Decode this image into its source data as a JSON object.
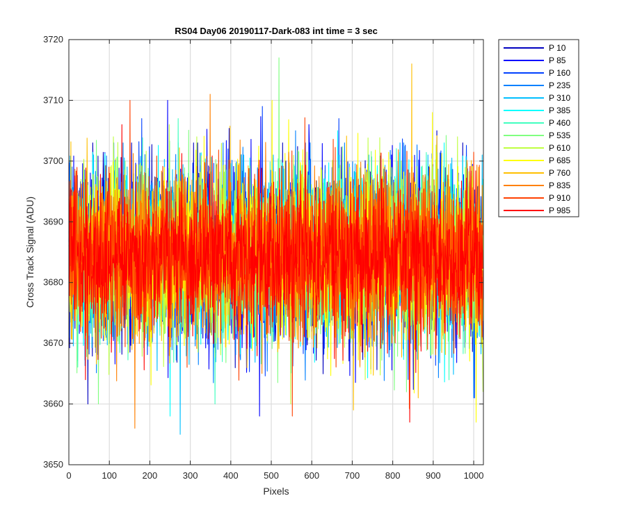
{
  "chart_data": {
    "type": "line",
    "title": "RS04 Day06 20190117-Dark-083 int time = 3 sec",
    "xlabel": "Pixels",
    "ylabel": "Cross Track Signal (ADU)",
    "xlim": [
      0,
      1024
    ],
    "ylim": [
      3650,
      3720
    ],
    "xticks": [
      0,
      100,
      200,
      300,
      400,
      500,
      600,
      700,
      800,
      900,
      1000
    ],
    "yticks": [
      3650,
      3660,
      3670,
      3680,
      3690,
      3700,
      3710,
      3720
    ],
    "grid": true,
    "legend_position": "outside-top-right",
    "x_samples": 1024,
    "series": [
      {
        "name": "P 10",
        "color": "#0000BF",
        "mean": 3684.5,
        "std": 7.2,
        "max": 3705,
        "min": 3660
      },
      {
        "name": "P 85",
        "color": "#0000FF",
        "mean": 3684.5,
        "std": 7.2,
        "max": 3710,
        "min": 3658
      },
      {
        "name": "P 160",
        "color": "#0040FF",
        "mean": 3684.5,
        "std": 7.0,
        "max": 3709,
        "min": 3661
      },
      {
        "name": "P 235",
        "color": "#0080FF",
        "mean": 3684.5,
        "std": 7.0,
        "max": 3705,
        "min": 3661
      },
      {
        "name": "P 310",
        "color": "#00BFFF",
        "mean": 3684.5,
        "std": 6.9,
        "max": 3703,
        "min": 3655
      },
      {
        "name": "P 385",
        "color": "#00FFFF",
        "mean": 3684.5,
        "std": 6.9,
        "max": 3705,
        "min": 3658
      },
      {
        "name": "P 460",
        "color": "#40FFBF",
        "mean": 3684.5,
        "std": 6.8,
        "max": 3707,
        "min": 3660
      },
      {
        "name": "P 535",
        "color": "#80FF80",
        "mean": 3684.5,
        "std": 6.8,
        "max": 3717,
        "min": 3660
      },
      {
        "name": "P 610",
        "color": "#BFFF40",
        "mean": 3684.5,
        "std": 6.8,
        "max": 3706,
        "min": 3660
      },
      {
        "name": "P 685",
        "color": "#FFFF00",
        "mean": 3684.5,
        "std": 6.8,
        "max": 3710,
        "min": 3657
      },
      {
        "name": "P 760",
        "color": "#FFBF00",
        "mean": 3684.5,
        "std": 6.8,
        "max": 3716,
        "min": 3659
      },
      {
        "name": "P 835",
        "color": "#FF8000",
        "mean": 3684.5,
        "std": 6.7,
        "max": 3711,
        "min": 3656
      },
      {
        "name": "P 910",
        "color": "#FF4000",
        "mean": 3684.5,
        "std": 6.6,
        "max": 3710,
        "min": 3658
      },
      {
        "name": "P 985",
        "color": "#FF0000",
        "mean": 3684.5,
        "std": 6.2,
        "max": 3706,
        "min": 3657
      }
    ]
  }
}
